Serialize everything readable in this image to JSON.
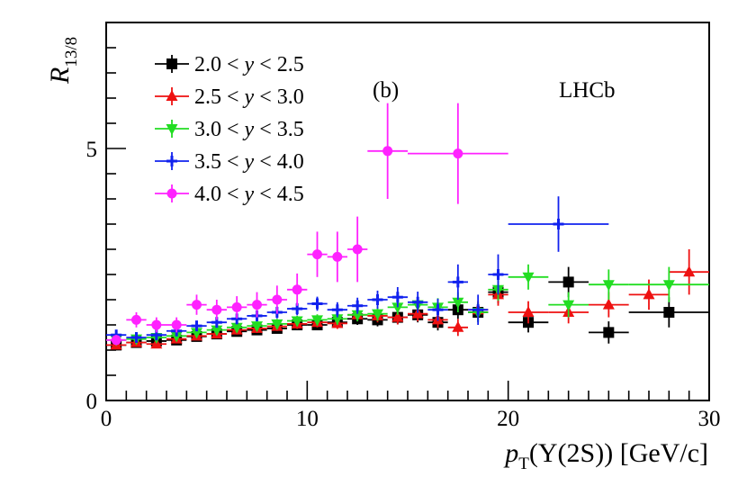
{
  "chart_data": {
    "type": "scatter",
    "xlabel": "p_T(Υ(2S)) [GeV/c]",
    "ylabel": "R_13/8",
    "xlim": [
      0,
      30
    ],
    "ylim": [
      0,
      7.5
    ],
    "x_ticks": [
      0,
      10,
      20,
      30
    ],
    "y_ticks": [
      0,
      5
    ],
    "x_tick_labels": [
      "0",
      "10",
      "20",
      "30"
    ],
    "y_tick_labels": [
      "0",
      "5"
    ],
    "annotations": {
      "panel": "(b)",
      "experiment": "LHCb"
    },
    "series": [
      {
        "name": "2.0 < y < 2.5",
        "color": "#000000",
        "marker": "square",
        "points": [
          {
            "x": 0.5,
            "xerr": 0.5,
            "y": 1.1,
            "yerr": 0.08
          },
          {
            "x": 1.5,
            "xerr": 0.5,
            "y": 1.15,
            "yerr": 0.08
          },
          {
            "x": 2.5,
            "xerr": 0.5,
            "y": 1.18,
            "yerr": 0.08
          },
          {
            "x": 3.5,
            "xerr": 0.5,
            "y": 1.2,
            "yerr": 0.08
          },
          {
            "x": 4.5,
            "xerr": 0.5,
            "y": 1.27,
            "yerr": 0.08
          },
          {
            "x": 5.5,
            "xerr": 0.5,
            "y": 1.32,
            "yerr": 0.08
          },
          {
            "x": 6.5,
            "xerr": 0.5,
            "y": 1.37,
            "yerr": 0.08
          },
          {
            "x": 7.5,
            "xerr": 0.5,
            "y": 1.4,
            "yerr": 0.09
          },
          {
            "x": 8.5,
            "xerr": 0.5,
            "y": 1.43,
            "yerr": 0.09
          },
          {
            "x": 9.5,
            "xerr": 0.5,
            "y": 1.5,
            "yerr": 0.1
          },
          {
            "x": 10.5,
            "xerr": 0.5,
            "y": 1.5,
            "yerr": 0.1
          },
          {
            "x": 11.5,
            "xerr": 0.5,
            "y": 1.55,
            "yerr": 0.11
          },
          {
            "x": 12.5,
            "xerr": 0.5,
            "y": 1.62,
            "yerr": 0.12
          },
          {
            "x": 13.5,
            "xerr": 0.5,
            "y": 1.6,
            "yerr": 0.13
          },
          {
            "x": 14.5,
            "xerr": 0.5,
            "y": 1.65,
            "yerr": 0.14
          },
          {
            "x": 15.5,
            "xerr": 0.5,
            "y": 1.7,
            "yerr": 0.15
          },
          {
            "x": 16.5,
            "xerr": 0.5,
            "y": 1.55,
            "yerr": 0.16
          },
          {
            "x": 17.5,
            "xerr": 0.5,
            "y": 1.8,
            "yerr": 0.18
          },
          {
            "x": 18.5,
            "xerr": 0.5,
            "y": 1.75,
            "yerr": 0.19
          },
          {
            "x": 19.5,
            "xerr": 0.5,
            "y": 2.15,
            "yerr": 0.22
          },
          {
            "x": 21.0,
            "xerr": 1.0,
            "y": 1.55,
            "yerr": 0.2
          },
          {
            "x": 23.0,
            "xerr": 1.0,
            "y": 2.35,
            "yerr": 0.3
          },
          {
            "x": 25.0,
            "xerr": 1.0,
            "y": 1.35,
            "yerr": 0.22
          },
          {
            "x": 28.0,
            "xerr": 2.0,
            "y": 1.75,
            "yerr": 0.3
          }
        ]
      },
      {
        "name": "2.5 < y < 3.0",
        "color": "#ee1111",
        "marker": "triangle-up",
        "points": [
          {
            "x": 0.5,
            "xerr": 0.5,
            "y": 1.1,
            "yerr": 0.08
          },
          {
            "x": 1.5,
            "xerr": 0.5,
            "y": 1.15,
            "yerr": 0.08
          },
          {
            "x": 2.5,
            "xerr": 0.5,
            "y": 1.12,
            "yerr": 0.08
          },
          {
            "x": 3.5,
            "xerr": 0.5,
            "y": 1.22,
            "yerr": 0.08
          },
          {
            "x": 4.5,
            "xerr": 0.5,
            "y": 1.28,
            "yerr": 0.08
          },
          {
            "x": 5.5,
            "xerr": 0.5,
            "y": 1.32,
            "yerr": 0.08
          },
          {
            "x": 6.5,
            "xerr": 0.5,
            "y": 1.4,
            "yerr": 0.09
          },
          {
            "x": 7.5,
            "xerr": 0.5,
            "y": 1.43,
            "yerr": 0.09
          },
          {
            "x": 8.5,
            "xerr": 0.5,
            "y": 1.47,
            "yerr": 0.09
          },
          {
            "x": 9.5,
            "xerr": 0.5,
            "y": 1.52,
            "yerr": 0.1
          },
          {
            "x": 10.5,
            "xerr": 0.5,
            "y": 1.55,
            "yerr": 0.1
          },
          {
            "x": 11.5,
            "xerr": 0.5,
            "y": 1.53,
            "yerr": 0.11
          },
          {
            "x": 12.5,
            "xerr": 0.5,
            "y": 1.7,
            "yerr": 0.12
          },
          {
            "x": 13.5,
            "xerr": 0.5,
            "y": 1.68,
            "yerr": 0.13
          },
          {
            "x": 14.5,
            "xerr": 0.5,
            "y": 1.65,
            "yerr": 0.14
          },
          {
            "x": 15.5,
            "xerr": 0.5,
            "y": 1.72,
            "yerr": 0.15
          },
          {
            "x": 16.5,
            "xerr": 0.5,
            "y": 1.6,
            "yerr": 0.16
          },
          {
            "x": 17.5,
            "xerr": 0.5,
            "y": 1.45,
            "yerr": 0.17
          },
          {
            "x": 18.5,
            "xerr": 0.5,
            "y": 1.8,
            "yerr": 0.18
          },
          {
            "x": 19.5,
            "xerr": 0.5,
            "y": 2.1,
            "yerr": 0.22
          },
          {
            "x": 21.0,
            "xerr": 1.0,
            "y": 1.75,
            "yerr": 0.22
          },
          {
            "x": 23.0,
            "xerr": 1.0,
            "y": 1.75,
            "yerr": 0.22
          },
          {
            "x": 25.0,
            "xerr": 1.0,
            "y": 1.9,
            "yerr": 0.25
          },
          {
            "x": 27.0,
            "xerr": 1.0,
            "y": 2.1,
            "yerr": 0.3
          },
          {
            "x": 29.0,
            "xerr": 1.0,
            "y": 2.55,
            "yerr": 0.45
          }
        ]
      },
      {
        "name": "3.0 < y < 3.5",
        "color": "#22dd22",
        "marker": "triangle-down",
        "points": [
          {
            "x": 0.5,
            "xerr": 0.5,
            "y": 1.2,
            "yerr": 0.08
          },
          {
            "x": 1.5,
            "xerr": 0.5,
            "y": 1.22,
            "yerr": 0.08
          },
          {
            "x": 2.5,
            "xerr": 0.5,
            "y": 1.25,
            "yerr": 0.08
          },
          {
            "x": 3.5,
            "xerr": 0.5,
            "y": 1.28,
            "yerr": 0.08
          },
          {
            "x": 4.5,
            "xerr": 0.5,
            "y": 1.35,
            "yerr": 0.08
          },
          {
            "x": 5.5,
            "xerr": 0.5,
            "y": 1.4,
            "yerr": 0.09
          },
          {
            "x": 6.5,
            "xerr": 0.5,
            "y": 1.45,
            "yerr": 0.09
          },
          {
            "x": 7.5,
            "xerr": 0.5,
            "y": 1.48,
            "yerr": 0.09
          },
          {
            "x": 8.5,
            "xerr": 0.5,
            "y": 1.52,
            "yerr": 0.1
          },
          {
            "x": 9.5,
            "xerr": 0.5,
            "y": 1.58,
            "yerr": 0.1
          },
          {
            "x": 10.5,
            "xerr": 0.5,
            "y": 1.6,
            "yerr": 0.11
          },
          {
            "x": 11.5,
            "xerr": 0.5,
            "y": 1.62,
            "yerr": 0.12
          },
          {
            "x": 12.5,
            "xerr": 0.5,
            "y": 1.7,
            "yerr": 0.13
          },
          {
            "x": 13.5,
            "xerr": 0.5,
            "y": 1.72,
            "yerr": 0.14
          },
          {
            "x": 14.5,
            "xerr": 0.5,
            "y": 1.85,
            "yerr": 0.15
          },
          {
            "x": 15.5,
            "xerr": 0.5,
            "y": 1.9,
            "yerr": 0.16
          },
          {
            "x": 16.5,
            "xerr": 0.5,
            "y": 1.85,
            "yerr": 0.18
          },
          {
            "x": 17.5,
            "xerr": 0.5,
            "y": 1.95,
            "yerr": 0.2
          },
          {
            "x": 18.5,
            "xerr": 0.5,
            "y": 1.75,
            "yerr": 0.2
          },
          {
            "x": 19.5,
            "xerr": 0.5,
            "y": 2.2,
            "yerr": 0.22
          },
          {
            "x": 21.0,
            "xerr": 1.0,
            "y": 2.45,
            "yerr": 0.25
          },
          {
            "x": 23.0,
            "xerr": 1.0,
            "y": 1.9,
            "yerr": 0.25
          },
          {
            "x": 25.0,
            "xerr": 1.0,
            "y": 2.3,
            "yerr": 0.3
          },
          {
            "x": 28.0,
            "xerr": 2.0,
            "y": 2.3,
            "yerr": 0.35
          }
        ]
      },
      {
        "name": "3.5 < y < 4.0",
        "color": "#1122ee",
        "marker": "cross",
        "points": [
          {
            "x": 0.5,
            "xerr": 0.5,
            "y": 1.3,
            "yerr": 0.08
          },
          {
            "x": 1.5,
            "xerr": 0.5,
            "y": 1.25,
            "yerr": 0.08
          },
          {
            "x": 2.5,
            "xerr": 0.5,
            "y": 1.3,
            "yerr": 0.08
          },
          {
            "x": 3.5,
            "xerr": 0.5,
            "y": 1.38,
            "yerr": 0.09
          },
          {
            "x": 4.5,
            "xerr": 0.5,
            "y": 1.48,
            "yerr": 0.09
          },
          {
            "x": 5.5,
            "xerr": 0.5,
            "y": 1.55,
            "yerr": 0.1
          },
          {
            "x": 6.5,
            "xerr": 0.5,
            "y": 1.62,
            "yerr": 0.1
          },
          {
            "x": 7.5,
            "xerr": 0.5,
            "y": 1.68,
            "yerr": 0.11
          },
          {
            "x": 8.5,
            "xerr": 0.5,
            "y": 1.75,
            "yerr": 0.12
          },
          {
            "x": 9.5,
            "xerr": 0.5,
            "y": 1.82,
            "yerr": 0.13
          },
          {
            "x": 10.5,
            "xerr": 0.5,
            "y": 1.92,
            "yerr": 0.14
          },
          {
            "x": 11.5,
            "xerr": 0.5,
            "y": 1.8,
            "yerr": 0.15
          },
          {
            "x": 12.5,
            "xerr": 0.5,
            "y": 1.88,
            "yerr": 0.16
          },
          {
            "x": 13.5,
            "xerr": 0.5,
            "y": 2.0,
            "yerr": 0.18
          },
          {
            "x": 14.5,
            "xerr": 0.5,
            "y": 2.05,
            "yerr": 0.2
          },
          {
            "x": 15.5,
            "xerr": 0.5,
            "y": 1.95,
            "yerr": 0.21
          },
          {
            "x": 16.5,
            "xerr": 0.5,
            "y": 1.8,
            "yerr": 0.22
          },
          {
            "x": 17.5,
            "xerr": 0.5,
            "y": 2.35,
            "yerr": 0.35
          },
          {
            "x": 18.5,
            "xerr": 0.5,
            "y": 1.8,
            "yerr": 0.3
          },
          {
            "x": 19.5,
            "xerr": 0.5,
            "y": 2.5,
            "yerr": 0.4
          },
          {
            "x": 22.5,
            "xerr": 2.5,
            "y": 3.5,
            "yerr": 0.55
          }
        ]
      },
      {
        "name": "4.0 < y < 4.5",
        "color": "#ff22ff",
        "marker": "circle",
        "points": [
          {
            "x": 0.5,
            "xerr": 0.5,
            "y": 1.2,
            "yerr": 0.1
          },
          {
            "x": 1.5,
            "xerr": 0.5,
            "y": 1.6,
            "yerr": 0.15
          },
          {
            "x": 2.5,
            "xerr": 0.5,
            "y": 1.5,
            "yerr": 0.15
          },
          {
            "x": 3.5,
            "xerr": 0.5,
            "y": 1.5,
            "yerr": 0.15
          },
          {
            "x": 4.5,
            "xerr": 0.5,
            "y": 1.9,
            "yerr": 0.2
          },
          {
            "x": 5.5,
            "xerr": 0.5,
            "y": 1.8,
            "yerr": 0.2
          },
          {
            "x": 6.5,
            "xerr": 0.5,
            "y": 1.85,
            "yerr": 0.22
          },
          {
            "x": 7.5,
            "xerr": 0.5,
            "y": 1.9,
            "yerr": 0.25
          },
          {
            "x": 8.5,
            "xerr": 0.5,
            "y": 2.0,
            "yerr": 0.28
          },
          {
            "x": 9.5,
            "xerr": 0.5,
            "y": 2.2,
            "yerr": 0.32
          },
          {
            "x": 10.5,
            "xerr": 0.5,
            "y": 2.9,
            "yerr": 0.45
          },
          {
            "x": 11.5,
            "xerr": 0.5,
            "y": 2.85,
            "yerr": 0.5
          },
          {
            "x": 12.5,
            "xerr": 0.5,
            "y": 3.0,
            "yerr": 0.65
          },
          {
            "x": 14.0,
            "xerr": 1.0,
            "y": 4.95,
            "yerr": 0.95
          },
          {
            "x": 17.5,
            "xerr": 2.5,
            "y": 4.9,
            "yerr": 1.0
          }
        ]
      }
    ]
  }
}
